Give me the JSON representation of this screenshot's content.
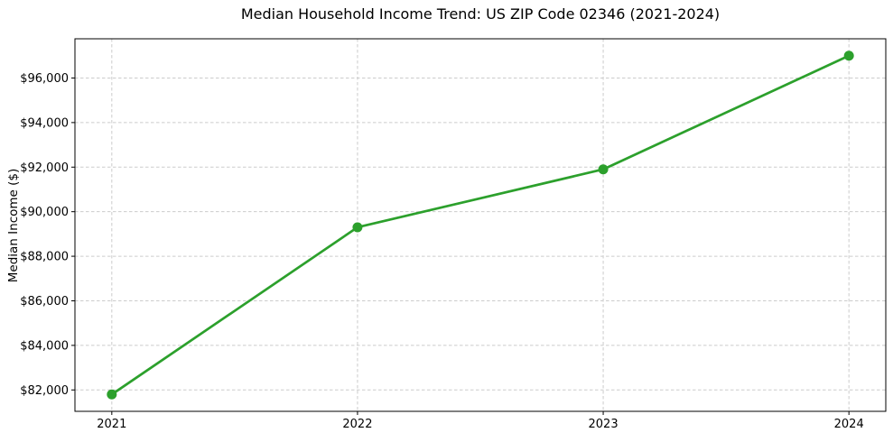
{
  "chart_data": {
    "type": "line",
    "title": "Median Household Income Trend: US ZIP Code 02346 (2021-2024)",
    "xlabel": "",
    "ylabel": "Median Income ($)",
    "x": [
      2021,
      2022,
      2023,
      2024
    ],
    "xtick_labels": [
      "2021",
      "2022",
      "2023",
      "2024"
    ],
    "series": [
      {
        "values": [
          81800,
          89300,
          91900,
          97000
        ],
        "color": "#2ca02c",
        "marker": "circle"
      }
    ],
    "xlim": [
      2020.85,
      2024.15
    ],
    "ylim": [
      81040,
      97760
    ],
    "yticks": [
      82000,
      84000,
      86000,
      88000,
      90000,
      92000,
      94000,
      96000
    ],
    "ytick_labels": [
      "$82,000",
      "$84,000",
      "$86,000",
      "$88,000",
      "$90,000",
      "$92,000",
      "$94,000",
      "$96,000"
    ],
    "grid": true,
    "grid_color": "#cccccc",
    "grid_style": "dashed",
    "legend": "none",
    "background_color": "#ffffff",
    "axis_color": "#000000",
    "text_color": "#000000"
  }
}
